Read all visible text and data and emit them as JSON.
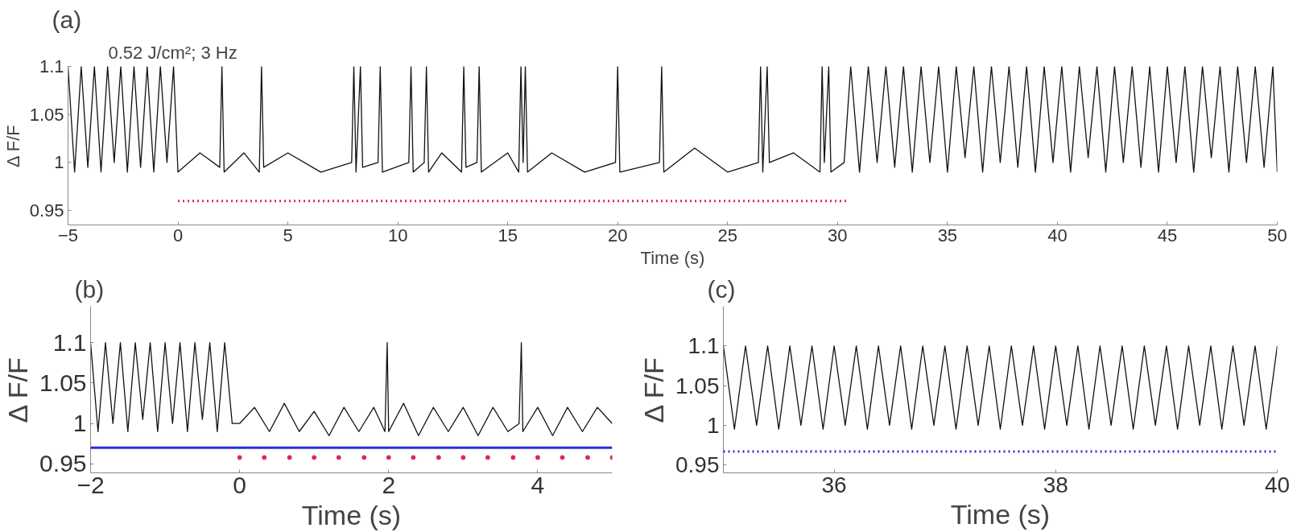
{
  "chart_data": [
    {
      "type": "line",
      "title": "(a)",
      "xlabel": "Time (s)",
      "ylabel": "Δ F/F",
      "annotations": [
        "0.52 J/cm²; 3 Hz"
      ],
      "xlim": [
        -5,
        50
      ],
      "ylim": [
        0.935,
        1.1
      ],
      "xticks": [
        {
          "value": -5,
          "label": "−5"
        },
        0,
        5,
        10,
        15,
        20,
        25,
        30,
        35,
        40,
        45,
        50
      ],
      "yticks": [
        0.95,
        1,
        1.05,
        1.1
      ],
      "grid": false,
      "series": [
        {
          "color": "#111111",
          "line_style": "solid",
          "x": [
            -5,
            -4.7,
            -4.4,
            -4.1,
            -3.8,
            -3.5,
            -3.2,
            -2.9,
            -2.6,
            -2.3,
            -2,
            -1.7,
            -1.4,
            -1.1,
            -0.8,
            -0.5,
            -0.2,
            0,
            1,
            1.9,
            2,
            2.1,
            3,
            3.7,
            3.8,
            3.9,
            5,
            6.5,
            7.9,
            8,
            8.1,
            8.3,
            8.4,
            9.1,
            9.2,
            9.3,
            10.5,
            10.6,
            10.7,
            11.2,
            11.3,
            11.4,
            12,
            12.9,
            13,
            13.1,
            13.6,
            13.7,
            13.8,
            15,
            15.5,
            15.6,
            15.7,
            15.8,
            15.9,
            17,
            18.5,
            19.9,
            20,
            20.1,
            21.9,
            22,
            22.1,
            23.5,
            25,
            26.4,
            26.5,
            26.6,
            26.8,
            26.9,
            28,
            29.2,
            29.3,
            29.4,
            29.6,
            29.7,
            30.3,
            30.6,
            31,
            31.4,
            31.8,
            32.2,
            32.6,
            33,
            33.4,
            33.8,
            34.2,
            34.6,
            35,
            35.4,
            35.8,
            36.2,
            36.6,
            37,
            37.4,
            37.8,
            38.2,
            38.6,
            39,
            39.4,
            39.8,
            40.2,
            40.6,
            41,
            41.4,
            41.8,
            42.2,
            42.6,
            43,
            43.4,
            43.8,
            44.2,
            44.6,
            45,
            45.4,
            45.8,
            46.2,
            46.6,
            47,
            47.4,
            47.8,
            48.2,
            48.6,
            49,
            49.4,
            49.8,
            50
          ],
          "values": [
            1.1,
            0.99,
            1.1,
            0.995,
            1.1,
            0.99,
            1.1,
            1.0,
            1.1,
            0.99,
            1.1,
            0.995,
            1.1,
            0.99,
            1.1,
            1.0,
            1.1,
            0.99,
            1.01,
            0.995,
            1.1,
            0.99,
            1.01,
            0.99,
            1.1,
            0.995,
            1.01,
            0.99,
            1.0,
            1.1,
            0.99,
            1.1,
            0.995,
            1.0,
            1.1,
            0.99,
            1.0,
            1.1,
            0.99,
            1.0,
            1.1,
            0.99,
            1.01,
            0.99,
            1.1,
            0.995,
            1.0,
            1.1,
            0.99,
            1.01,
            0.99,
            1.1,
            1.0,
            1.1,
            0.99,
            1.01,
            0.99,
            1.0,
            1.1,
            0.99,
            1.0,
            1.1,
            0.99,
            1.015,
            0.99,
            1.0,
            1.1,
            0.99,
            1.1,
            1.0,
            1.01,
            0.99,
            1.1,
            1.0,
            1.1,
            0.99,
            1.0,
            1.1,
            0.99,
            1.1,
            1.0,
            1.1,
            0.995,
            1.1,
            0.99,
            1.1,
            1.0,
            1.1,
            0.99,
            1.1,
            1.005,
            1.1,
            0.99,
            1.1,
            1.0,
            1.1,
            0.995,
            1.1,
            0.99,
            1.1,
            1.0,
            1.1,
            0.99,
            1.1,
            1.005,
            1.1,
            0.99,
            1.1,
            1.0,
            1.1,
            0.995,
            1.1,
            0.99,
            1.1,
            1.0,
            1.1,
            0.99,
            1.1,
            1.005,
            1.1,
            0.99,
            1.1,
            1.0,
            1.1,
            0.995,
            1.1,
            0.99
          ]
        },
        {
          "color": "#e0245e",
          "line_style": "dotted",
          "x": [
            0,
            30.5
          ],
          "values": [
            0.96,
            0.96
          ]
        }
      ]
    },
    {
      "type": "line",
      "title": "(b)",
      "xlabel": "Time (s)",
      "ylabel": "Δ F/F",
      "xlim": [
        -2,
        5
      ],
      "ylim": [
        0.939,
        1.145
      ],
      "xticks": [
        {
          "value": -2,
          "label": "−2"
        },
        0,
        2,
        4
      ],
      "yticks": [
        0.95,
        1,
        1.05,
        1.1
      ],
      "grid": false,
      "ref_lines": [
        {
          "axis": "y",
          "value": 0.97,
          "label": null,
          "color": "#2a2ae0",
          "line_style": "solid"
        }
      ],
      "series": [
        {
          "color": "#111111",
          "line_style": "solid",
          "x": [
            -2,
            -1.9,
            -1.8,
            -1.7,
            -1.6,
            -1.5,
            -1.4,
            -1.3,
            -1.2,
            -1.1,
            -1,
            -0.9,
            -0.8,
            -0.7,
            -0.6,
            -0.5,
            -0.4,
            -0.3,
            -0.2,
            -0.1,
            0,
            0.2,
            0.4,
            0.6,
            0.8,
            1.0,
            1.2,
            1.4,
            1.6,
            1.8,
            1.95,
            1.98,
            2.0,
            2.2,
            2.4,
            2.6,
            2.8,
            3.0,
            3.2,
            3.4,
            3.6,
            3.75,
            3.78,
            3.8,
            4.0,
            4.2,
            4.4,
            4.6,
            4.8,
            5.0
          ],
          "values": [
            1.1,
            0.99,
            1.1,
            1.0,
            1.1,
            0.99,
            1.1,
            1.005,
            1.1,
            0.99,
            1.1,
            1.0,
            1.1,
            0.99,
            1.1,
            1.005,
            1.1,
            0.99,
            1.1,
            1.0,
            1.0,
            1.02,
            0.99,
            1.025,
            0.99,
            1.015,
            0.985,
            1.02,
            0.99,
            1.02,
            0.99,
            1.1,
            0.99,
            1.025,
            0.985,
            1.02,
            0.99,
            1.02,
            0.985,
            1.02,
            0.99,
            1.0,
            1.1,
            0.99,
            1.02,
            0.985,
            1.02,
            0.99,
            1.02,
            1.0
          ]
        },
        {
          "type": "scatter",
          "color": "#e0245e",
          "marker": "circle",
          "x": [
            0,
            0.33,
            0.67,
            1,
            1.33,
            1.67,
            2,
            2.33,
            2.67,
            3,
            3.33,
            3.67,
            4,
            4.33,
            4.67,
            5
          ],
          "values": [
            0.958,
            0.958,
            0.958,
            0.958,
            0.958,
            0.958,
            0.958,
            0.958,
            0.958,
            0.958,
            0.958,
            0.958,
            0.958,
            0.958,
            0.958,
            0.958
          ]
        }
      ]
    },
    {
      "type": "line",
      "title": "(c)",
      "xlabel": "Time (s)",
      "ylabel": "Δ F/F",
      "xlim": [
        35,
        40
      ],
      "ylim": [
        0.94,
        1.15
      ],
      "xticks": [
        36,
        38,
        40
      ],
      "yticks": [
        0.95,
        1,
        1.05,
        1.1
      ],
      "grid": false,
      "ref_lines": [
        {
          "axis": "y",
          "value": 0.967,
          "label": null,
          "color": "#2a2ae0",
          "line_style": "dotted"
        }
      ],
      "series": [
        {
          "color": "#111111",
          "line_style": "solid",
          "x": [
            35,
            35.1,
            35.2,
            35.3,
            35.4,
            35.5,
            35.6,
            35.7,
            35.8,
            35.9,
            36,
            36.1,
            36.2,
            36.3,
            36.4,
            36.5,
            36.6,
            36.7,
            36.8,
            36.9,
            37,
            37.1,
            37.2,
            37.3,
            37.4,
            37.5,
            37.6,
            37.7,
            37.8,
            37.9,
            38,
            38.1,
            38.2,
            38.3,
            38.4,
            38.5,
            38.6,
            38.7,
            38.8,
            38.9,
            39,
            39.1,
            39.2,
            39.3,
            39.4,
            39.5,
            39.6,
            39.7,
            39.8,
            39.9,
            40
          ],
          "values": [
            1.1,
            0.995,
            1.1,
            1.0,
            1.1,
            0.995,
            1.1,
            1.0,
            1.1,
            0.995,
            1.1,
            1.0,
            1.1,
            0.995,
            1.1,
            1.0,
            1.1,
            0.995,
            1.1,
            1.0,
            1.1,
            0.995,
            1.1,
            1.0,
            1.1,
            0.995,
            1.1,
            1.0,
            1.1,
            0.995,
            1.1,
            1.0,
            1.1,
            0.995,
            1.1,
            1.0,
            1.1,
            0.995,
            1.1,
            1.0,
            1.1,
            0.995,
            1.1,
            1.0,
            1.1,
            0.995,
            1.1,
            1.0,
            1.1,
            0.995,
            1.1
          ]
        }
      ]
    }
  ]
}
